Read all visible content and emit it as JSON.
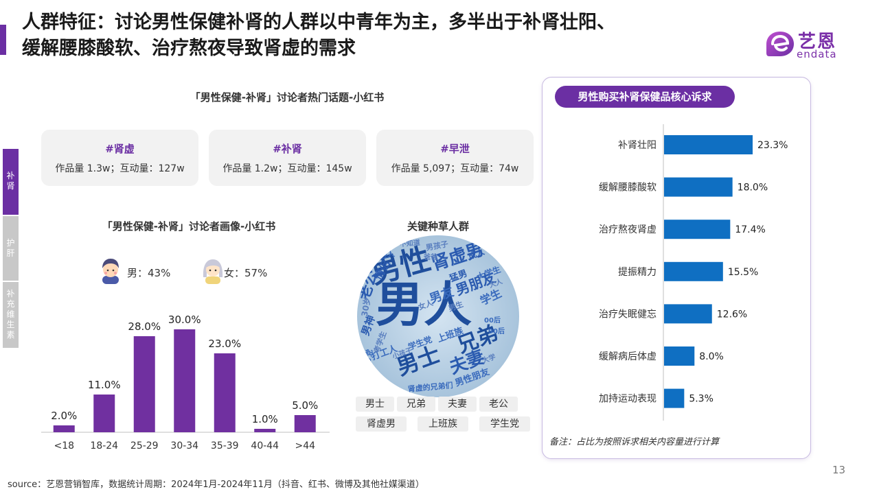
{
  "header": {
    "title_line1": "人群特征：讨论男性保健补肾的人群以中青年为主，多半出于补肾壮阳、",
    "title_line2": "缓解腰膝酸软、治疗熬夜导致肾虚的需求",
    "logo_cn": "艺恩",
    "logo_en": "endata",
    "accent": "#6b2fa3"
  },
  "side_tabs": [
    {
      "label": "补\n肾",
      "active": true
    },
    {
      "label": "护\n肝",
      "active": false
    },
    {
      "label": "补\n充\n维\n生\n素",
      "active": false
    }
  ],
  "topics": {
    "title": "「男性保健-补肾」讨论者热门话题-小红书",
    "items": [
      {
        "name": "#肾虚",
        "stats": "作品量 1.3w；互动量：127w"
      },
      {
        "name": "#补肾",
        "stats": "作品量 1.2w；互动量：145w"
      },
      {
        "name": "#早泄",
        "stats": "作品量 5,097；互动量：74w"
      }
    ]
  },
  "portrait": {
    "title": "「男性保健-补肾」讨论者画像-小红书",
    "male": "男：43%",
    "female": "女：57%"
  },
  "cloud": {
    "title": "关键种草人群",
    "words": [
      "男人",
      "男性",
      "肾虚男",
      "老公",
      "男士",
      "兄弟",
      "夫妻",
      "男朋友",
      "男友",
      "学生",
      "上班族",
      "男神",
      "情侣",
      "成人",
      "猛男",
      "大学生",
      "年轻人",
      "男性朋友",
      "学生党",
      "打工人",
      "高考党",
      "00后",
      "90后",
      "30岁",
      "女人",
      "大人",
      "小孩子",
      "男孩子",
      "男生",
      "考学生",
      "肾虚的兄弟们",
      "爸爸",
      "大学",
      "不知道"
    ],
    "tags": [
      "男士",
      "兄弟",
      "夫妻",
      "老公",
      "肾虚男",
      "上班族",
      "学生党"
    ]
  },
  "right_panel": {
    "pill": "男性购买补肾保健品核心诉求",
    "note": "备注：占比为按照诉求相关内容量进行计算"
  },
  "chart_data": [
    {
      "type": "bar",
      "title": "",
      "categories": [
        "<18",
        "18-24",
        "25-29",
        "30-34",
        "35-39",
        "40-44",
        ">44"
      ],
      "values": [
        2.0,
        11.0,
        28.0,
        30.0,
        23.0,
        1.0,
        5.0
      ],
      "value_labels": [
        "2.0%",
        "11.0%",
        "28.0%",
        "30.0%",
        "23.0%",
        "1.0%",
        "5.0%"
      ],
      "unit": "%",
      "color": "#7030a0"
    },
    {
      "type": "bar",
      "orientation": "horizontal",
      "title": "男性购买补肾保健品核心诉求",
      "categories": [
        "补肾壮阳",
        "缓解腰膝酸软",
        "治疗熬夜肾虚",
        "提振精力",
        "治疗失眠健忘",
        "缓解病后体虚",
        "加持运动表现"
      ],
      "values": [
        23.3,
        18.0,
        17.4,
        15.5,
        12.6,
        8.0,
        5.3
      ],
      "value_labels": [
        "23.3%",
        "18.0%",
        "17.4%",
        "15.5%",
        "12.6%",
        "8.0%",
        "5.3%"
      ],
      "unit": "%",
      "color": "#0f6fc2"
    }
  ],
  "footer": {
    "page": "13",
    "source": "source：艺恩营销智库，数据统计周期：2024年1月-2024年11月（抖音、红书、微博及其他社媒渠道）"
  }
}
